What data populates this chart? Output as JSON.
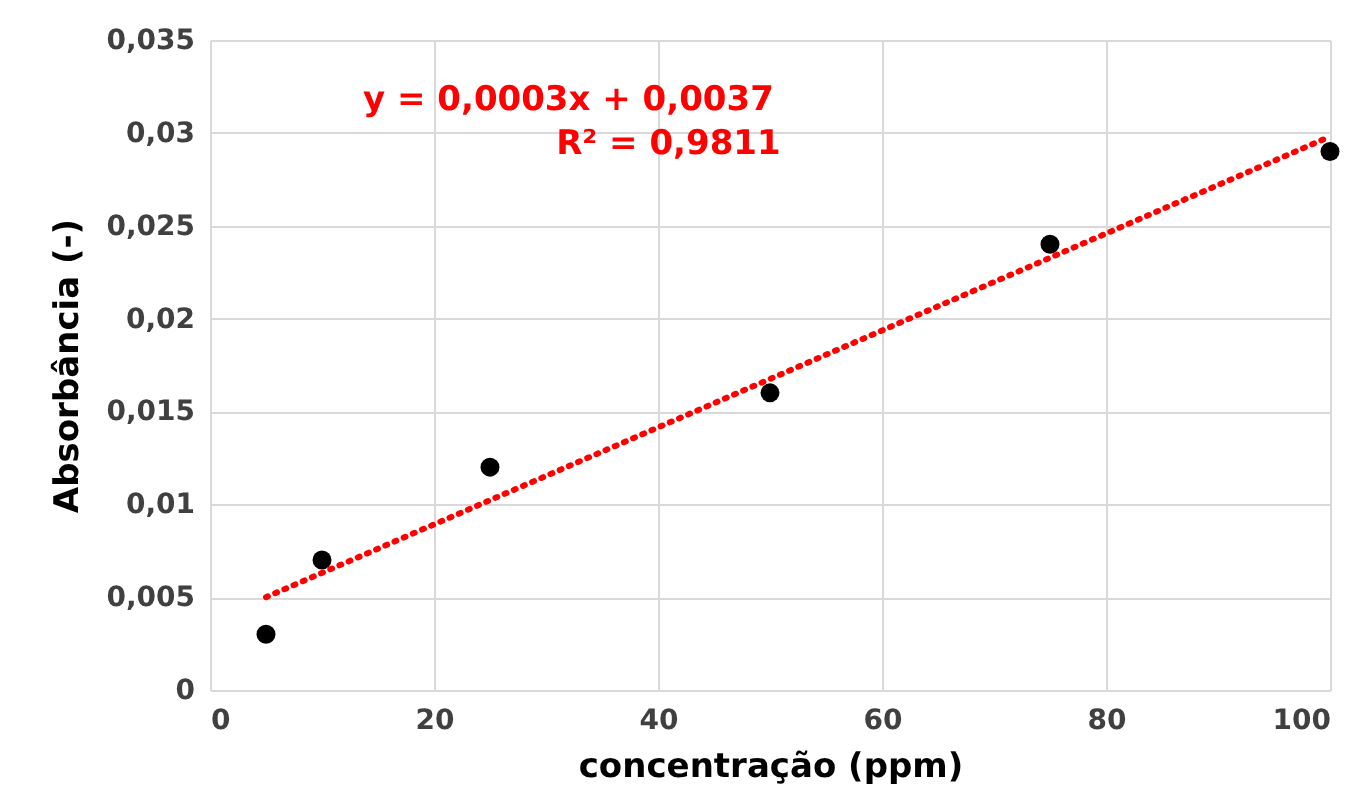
{
  "chart_data": {
    "type": "scatter",
    "xlabel": "concentração (ppm)",
    "ylabel": "Absorbância (-)",
    "x": [
      5,
      10,
      25,
      50,
      75,
      100
    ],
    "series": [
      {
        "color": "#000000",
        "marker": "circle",
        "values": [
          0.003,
          0.007,
          0.012,
          0.016,
          0.024,
          0.029
        ]
      },
      {
        "type": "line",
        "color": "#ff0000",
        "x": [
          5,
          100
        ],
        "values": [
          0.005,
          0.0298
        ],
        "line_style": "dotted",
        "marker": "none"
      }
    ],
    "annotations": [
      "y = 0,0003x + 0,0037",
      "R² = 0,9811"
    ],
    "xlim": [
      0,
      100
    ],
    "xticks": [
      0,
      20,
      40,
      60,
      80,
      100
    ],
    "ylim": [
      0,
      0.035
    ],
    "yticks": [
      0,
      {
        "value": 0.005,
        "label": "0,005"
      },
      {
        "value": 0.01,
        "label": "0,01"
      },
      {
        "value": 0.015,
        "label": "0,015"
      },
      {
        "value": 0.02,
        "label": "0,02"
      },
      {
        "value": 0.025,
        "label": "0,025"
      },
      {
        "value": 0.03,
        "label": "0,03"
      },
      {
        "value": 0.035,
        "label": "0,035"
      }
    ],
    "grid": true
  }
}
